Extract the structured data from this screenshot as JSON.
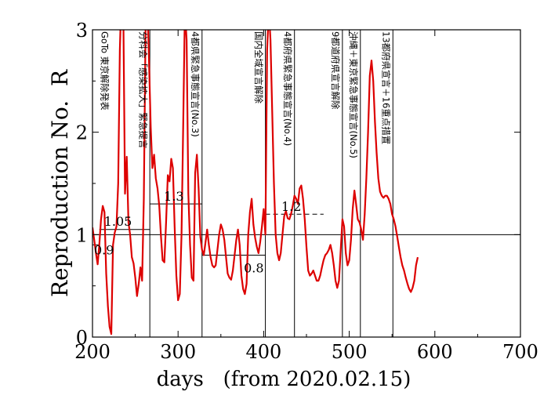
{
  "chart_data": {
    "type": "line",
    "title": "",
    "xlabel": "days   (from 2020.02.15)",
    "ylabel": "Reproduction No.  R",
    "xlim": [
      200,
      700
    ],
    "ylim": [
      0,
      3
    ],
    "xticks": [
      "200",
      "300",
      "400",
      "500",
      "600",
      "700"
    ],
    "yticks": [
      "0",
      "1",
      "2",
      "3"
    ],
    "xtick_values": [
      200,
      300,
      400,
      500,
      600,
      700
    ],
    "ytick_values": [
      0,
      1,
      2,
      3
    ],
    "line_color": "#dd0000",
    "baseline": 1,
    "grid": false,
    "series": [
      {
        "x": [
          200,
          202,
          204,
          206,
          208,
          210,
          212,
          214,
          216,
          218,
          220,
          222,
          224,
          226,
          228,
          230,
          232,
          234,
          236,
          238,
          240,
          242,
          244,
          246,
          248,
          250,
          252,
          254,
          256,
          258,
          260,
          262,
          264,
          266,
          268,
          270,
          272,
          274,
          276,
          278,
          280,
          282,
          284,
          286,
          288,
          290,
          292,
          294,
          296,
          298,
          300,
          302,
          304,
          306,
          308,
          310,
          312,
          314,
          316,
          318,
          320,
          322,
          324,
          326,
          328,
          330,
          332,
          334,
          336,
          338,
          340,
          342,
          344,
          346,
          348,
          350,
          352,
          354,
          356,
          358,
          360,
          362,
          364,
          366,
          368,
          370,
          372,
          374,
          376,
          378,
          380,
          382,
          384,
          386,
          388,
          390,
          392,
          394,
          396,
          398,
          400,
          402,
          404,
          406,
          408,
          410,
          412,
          414,
          416,
          418,
          420,
          422,
          424,
          426,
          428,
          430,
          432,
          434,
          436,
          438,
          440,
          442,
          444,
          446,
          448,
          450,
          452,
          454,
          456,
          458,
          460,
          462,
          464,
          466,
          468,
          470,
          472,
          474,
          476,
          478,
          480,
          482,
          484,
          486,
          488,
          490,
          492,
          494,
          496,
          498,
          500,
          502,
          504,
          506,
          508,
          510,
          512,
          514,
          516,
          518,
          520,
          522,
          524,
          526,
          528,
          530,
          532,
          534,
          536,
          538,
          540,
          542,
          544,
          546,
          548,
          550,
          552,
          554,
          556,
          558,
          560,
          562,
          564,
          566,
          568,
          570,
          572,
          574,
          576,
          578,
          580
        ],
        "y": [
          1.07,
          0.95,
          0.82,
          0.71,
          0.9,
          1.15,
          1.28,
          1.22,
          0.62,
          0.3,
          0.1,
          0.03,
          0.9,
          1.02,
          1.08,
          1.5,
          2.8,
          3.4,
          3.2,
          1.4,
          1.76,
          1.12,
          1.0,
          0.78,
          0.72,
          0.58,
          0.4,
          0.52,
          0.68,
          0.55,
          1.35,
          3.0,
          3.3,
          2.7,
          2.05,
          1.65,
          1.78,
          1.55,
          1.45,
          1.28,
          0.98,
          0.75,
          0.73,
          1.12,
          1.58,
          1.52,
          1.74,
          1.65,
          1.08,
          0.6,
          0.36,
          0.42,
          1.0,
          2.1,
          3.2,
          2.9,
          1.4,
          0.9,
          0.58,
          0.55,
          1.6,
          1.78,
          1.45,
          0.98,
          0.85,
          0.8,
          0.92,
          1.05,
          0.9,
          0.78,
          0.7,
          0.68,
          0.7,
          0.85,
          1.0,
          1.1,
          1.05,
          0.95,
          0.78,
          0.62,
          0.58,
          0.56,
          0.65,
          0.8,
          0.95,
          1.05,
          0.9,
          0.6,
          0.47,
          0.42,
          0.52,
          1.0,
          1.22,
          1.35,
          1.1,
          0.97,
          0.88,
          0.82,
          0.93,
          1.08,
          1.25,
          1.0,
          2.8,
          3.2,
          2.9,
          2.2,
          1.5,
          1.0,
          0.82,
          0.75,
          0.82,
          1.0,
          1.18,
          1.23,
          1.16,
          1.15,
          1.2,
          1.28,
          1.38,
          1.35,
          1.3,
          1.45,
          1.48,
          1.35,
          1.15,
          0.88,
          0.65,
          0.6,
          0.62,
          0.65,
          0.6,
          0.55,
          0.55,
          0.6,
          0.68,
          0.75,
          0.8,
          0.82,
          0.85,
          0.9,
          0.82,
          0.7,
          0.55,
          0.48,
          0.55,
          0.85,
          1.15,
          1.08,
          0.82,
          0.7,
          0.75,
          0.95,
          1.25,
          1.43,
          1.3,
          1.15,
          1.12,
          1.05,
          0.95,
          1.2,
          1.55,
          2.0,
          2.55,
          2.7,
          2.5,
          2.1,
          1.8,
          1.55,
          1.42,
          1.38,
          1.36,
          1.38,
          1.38,
          1.35,
          1.3,
          1.2,
          1.15,
          1.08,
          0.98,
          0.88,
          0.78,
          0.7,
          0.65,
          0.58,
          0.52,
          0.47,
          0.44,
          0.48,
          0.55,
          0.7,
          0.78
        ]
      }
    ],
    "event_lines": [
      {
        "x": 267,
        "label": "分科会「感染拡大」緊急提言"
      },
      {
        "x": 328,
        "label": "4都県緊急事態宣言(No.3)"
      },
      {
        "x": 402,
        "label": "国内全域宣言解除"
      },
      {
        "x": 436,
        "label": "4都府県緊急事態宣言(No.4)"
      },
      {
        "x": 492,
        "label": "9都道府県宣言解除"
      },
      {
        "x": 513,
        "label": "沖縄＋東京緊急事態宣言(No.5)"
      },
      {
        "x": 551,
        "label": "13都府県宣言＋16重点措置"
      }
    ],
    "top_annotation": {
      "x": 215,
      "label": "GoTo 東京解除発表"
    },
    "period_levels": [
      {
        "x0": 200,
        "x1": 208,
        "r": 0.9,
        "label": "0.9",
        "style": "solid"
      },
      {
        "x0": 208,
        "x1": 267,
        "r": 1.05,
        "label": "1.05",
        "style": "solid"
      },
      {
        "x0": 267,
        "x1": 328,
        "r": 1.3,
        "label": "1.3",
        "style": "solid"
      },
      {
        "x0": 328,
        "x1": 402,
        "r": 0.8,
        "label": "0.8",
        "style": "solid"
      },
      {
        "x0": 402,
        "x1": 470,
        "r": 1.2,
        "label": "1.2",
        "style": "dashed"
      }
    ]
  }
}
